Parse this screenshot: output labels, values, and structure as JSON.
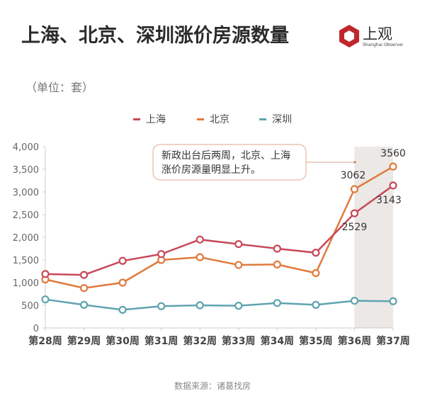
{
  "header": {
    "title": "上海、北京、深圳涨价房源数量",
    "logo_text": "上观",
    "logo_sub": "Shanghai Observer",
    "unit": "（单位：套）"
  },
  "legend": [
    {
      "label": "上海",
      "color": "#c8485a"
    },
    {
      "label": "北京",
      "color": "#e07a3c"
    },
    {
      "label": "深圳",
      "color": "#5fa3b0"
    }
  ],
  "annotation": {
    "line1": "新政出台后两周，北京、上海",
    "line2": "涨价房源量明显上升。"
  },
  "source": "数据来源：诸葛找房",
  "chart_data": {
    "type": "line",
    "title": "上海、北京、深圳涨价房源数量",
    "ylabel": "单位：套",
    "xlabel": "",
    "categories": [
      "第28周",
      "第29周",
      "第30周",
      "第31周",
      "第32周",
      "第33周",
      "第34周",
      "第35周",
      "第36周",
      "第37周"
    ],
    "yticks": [
      0,
      500,
      1000,
      1500,
      2000,
      2500,
      3000,
      3500,
      4000
    ],
    "ytick_labels": [
      "0",
      "500",
      "1,000",
      "1,500",
      "2,000",
      "2,500",
      "3,000",
      "3,500",
      "4,000"
    ],
    "ylim": [
      0,
      4000
    ],
    "grid": false,
    "legend_position": "top",
    "highlight_range": [
      "第36周",
      "第37周"
    ],
    "series": [
      {
        "name": "上海",
        "color": "#c8485a",
        "values": [
          1190,
          1170,
          1480,
          1630,
          1950,
          1850,
          1750,
          1660,
          2529,
          3143
        ]
      },
      {
        "name": "北京",
        "color": "#e07a3c",
        "values": [
          1070,
          880,
          1000,
          1500,
          1560,
          1390,
          1400,
          1210,
          3062,
          3560
        ]
      },
      {
        "name": "深圳",
        "color": "#5fa3b0",
        "values": [
          630,
          510,
          400,
          480,
          500,
          490,
          550,
          510,
          600,
          590
        ]
      }
    ],
    "data_labels": [
      {
        "series": "北京",
        "category": "第36周",
        "text": "3062"
      },
      {
        "series": "北京",
        "category": "第37周",
        "text": "3560"
      },
      {
        "series": "上海",
        "category": "第36周",
        "text": "2529"
      },
      {
        "series": "上海",
        "category": "第37周",
        "text": "3143"
      }
    ]
  }
}
